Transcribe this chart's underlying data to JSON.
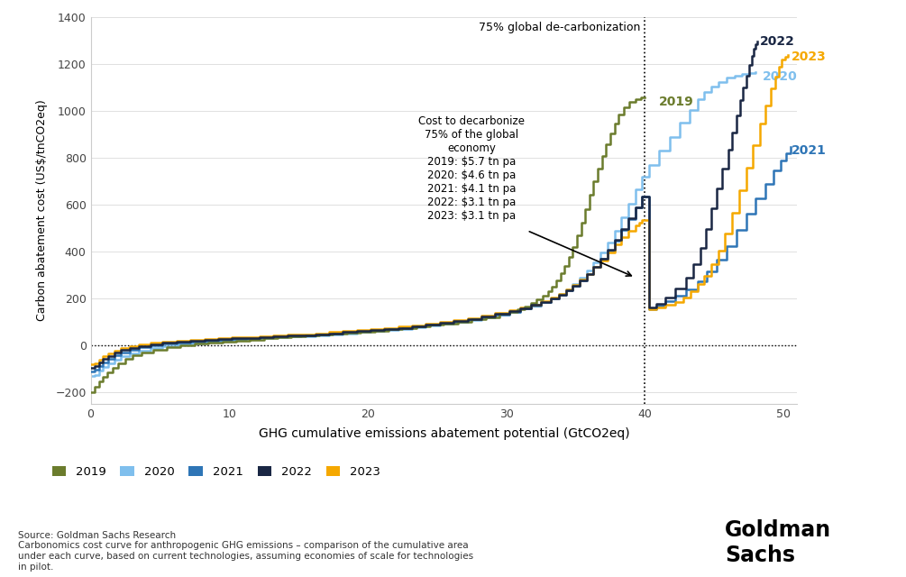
{
  "xlabel": "GHG cumulative emissions abatement potential (GtCO2eq)",
  "ylabel": "Carbon abatement cost (US$/tnCO2eq)",
  "xlim": [
    0,
    51
  ],
  "ylim": [
    -250,
    1400
  ],
  "xticks": [
    0,
    10,
    20,
    30,
    40,
    50
  ],
  "yticks": [
    -200,
    0,
    200,
    400,
    600,
    800,
    1000,
    1200,
    1400
  ],
  "vline_x": 40,
  "vline_label": "75% global de-carbonization",
  "annotation_text": "Cost to decarbonize\n75% of the global\neconomy\n2019: $5.7 tn pa\n2020: $4.6 tn pa\n2021: $4.1 tn pa\n2022: $3.1 tn pa\n2023: $3.1 tn pa",
  "colors": {
    "2019": "#6b7c2d",
    "2020": "#7fbfed",
    "2021": "#2e75b6",
    "2022": "#1a2744",
    "2023": "#f5a800"
  },
  "source_text": "Source: Goldman Sachs Research\nCarbonomics cost curve for anthropogenic GHG emissions – comparison of the cumulative area\nunder each curve, based on current technologies, assuming economies of scale for technologies\nin pilot.",
  "background_color": "#ffffff",
  "linewidth": 1.8
}
